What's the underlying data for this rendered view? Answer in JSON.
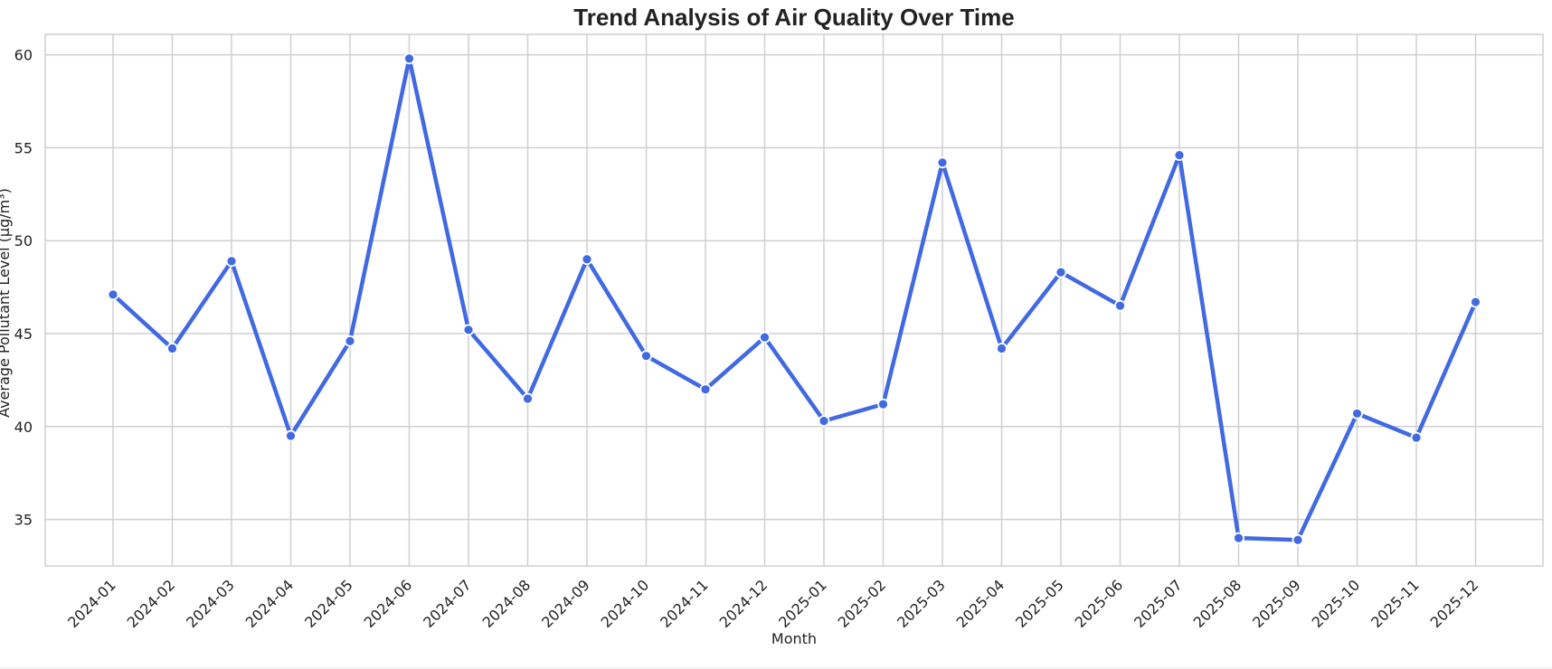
{
  "chart_data": {
    "type": "line",
    "title": "Trend Analysis of Air Quality Over Time",
    "xlabel": "Month",
    "ylabel": "Average Pollutant Level (μg/m³)",
    "x": [
      "2024-01",
      "2024-02",
      "2024-03",
      "2024-04",
      "2024-05",
      "2024-06",
      "2024-07",
      "2024-08",
      "2024-09",
      "2024-10",
      "2024-11",
      "2024-12",
      "2025-01",
      "2025-02",
      "2025-03",
      "2025-04",
      "2025-05",
      "2025-06",
      "2025-07",
      "2025-08",
      "2025-09",
      "2025-10",
      "2025-11",
      "2025-12"
    ],
    "series": [
      {
        "values": [
          47.1,
          44.2,
          48.9,
          39.5,
          44.6,
          59.8,
          45.2,
          41.5,
          49.0,
          43.8,
          42.0,
          44.8,
          40.3,
          41.2,
          54.2,
          44.2,
          48.3,
          46.5,
          54.6,
          34.0,
          33.9,
          40.7,
          39.4,
          46.7
        ],
        "color": "#4169e1"
      }
    ],
    "ylim": [
      32.5,
      61.1
    ],
    "yticks": [
      35,
      40,
      45,
      50,
      55,
      60
    ],
    "grid": true,
    "legend": "none"
  }
}
